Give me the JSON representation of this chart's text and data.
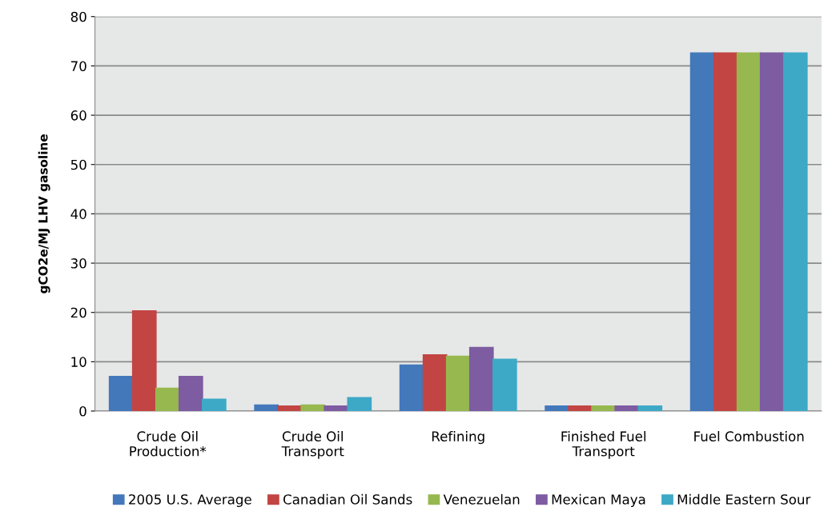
{
  "chart_data": {
    "type": "bar",
    "ylabel": "gCO2e/MJ LHV gasoline",
    "categories": [
      "Crude Oil\nProduction*",
      "Crude Oil\nTransport",
      "Refining",
      "Finished Fuel\nTransport",
      "Fuel Combustion"
    ],
    "series": [
      {
        "name": "2005 U.S. Average",
        "color": "#4378bb",
        "values": [
          7.0,
          1.2,
          9.3,
          1.0,
          72.6
        ]
      },
      {
        "name": "Canadian Oil Sands",
        "color": "#c24543",
        "values": [
          20.3,
          1.0,
          11.4,
          1.0,
          72.6
        ]
      },
      {
        "name": "Venezuelan",
        "color": "#97b84f",
        "values": [
          4.6,
          1.2,
          11.1,
          1.0,
          72.6
        ]
      },
      {
        "name": "Mexican Maya",
        "color": "#7d5ca1",
        "values": [
          7.0,
          1.0,
          12.9,
          1.0,
          72.6
        ]
      },
      {
        "name": "Middle Eastern Sour",
        "color": "#3da9c6",
        "values": [
          2.4,
          2.7,
          10.5,
          1.0,
          72.6
        ]
      }
    ],
    "ylim": [
      0,
      80
    ],
    "yticks": [
      0,
      10,
      20,
      30,
      40,
      50,
      60,
      70,
      80
    ],
    "grid": "y",
    "legend": "bottom"
  }
}
